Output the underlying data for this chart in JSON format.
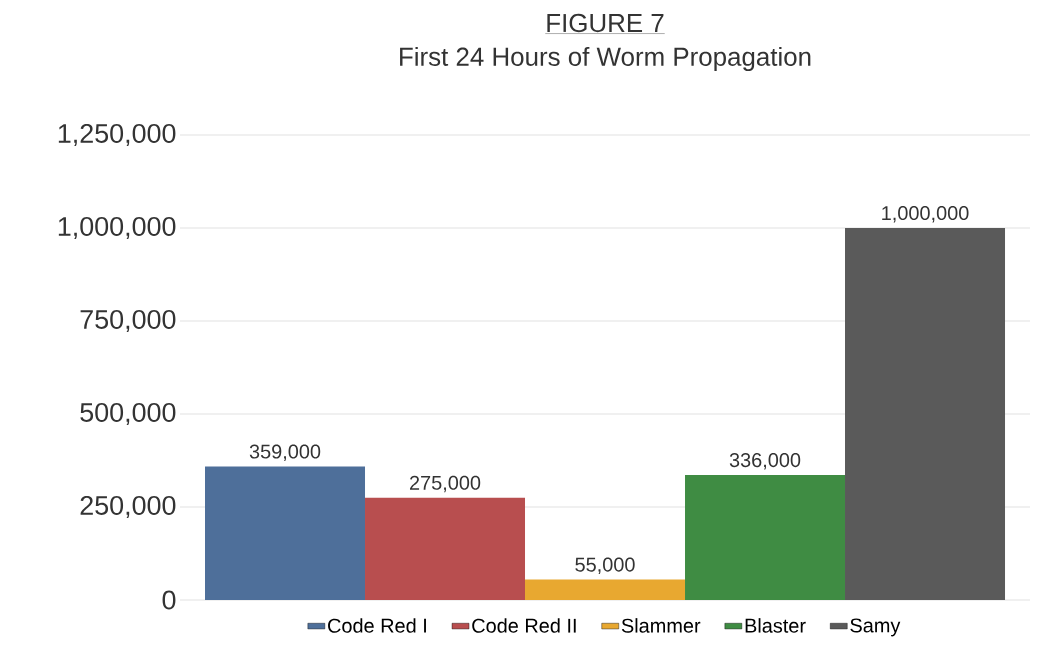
{
  "chart_data": {
    "type": "bar",
    "title": "FIGURE 7",
    "subtitle": "First 24 Hours of Worm Propagation",
    "categories": [
      null
    ],
    "series": [
      {
        "name": "Code Red I",
        "color": "#4e6f9a",
        "values": [
          359000
        ],
        "value_labels": [
          "359,000"
        ]
      },
      {
        "name": "Code Red II",
        "color": "#b84e4f",
        "values": [
          275000
        ],
        "value_labels": [
          "275,000"
        ]
      },
      {
        "name": "Slammer",
        "color": "#e8a830",
        "values": [
          55000
        ],
        "value_labels": [
          "55,000"
        ]
      },
      {
        "name": "Blaster",
        "color": "#3f8c43",
        "values": [
          336000
        ],
        "value_labels": [
          "336,000"
        ]
      },
      {
        "name": "Samy",
        "color": "#5a5a5a",
        "values": [
          1000000
        ],
        "value_labels": [
          "1,000,000"
        ]
      }
    ],
    "ylim": [
      0,
      1250000
    ],
    "yticks": [
      {
        "value": 0,
        "label": "0"
      },
      {
        "value": 250000,
        "label": "250,000"
      },
      {
        "value": 500000,
        "label": "500,000"
      },
      {
        "value": 750000,
        "label": "750,000"
      },
      {
        "value": 1000000,
        "label": "1,000,000"
      },
      {
        "value": 1250000,
        "label": "1,250,000"
      }
    ],
    "grid": "y",
    "legend": "bottom"
  }
}
